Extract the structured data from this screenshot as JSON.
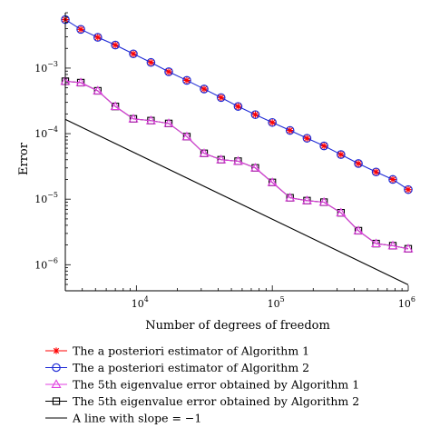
{
  "chart_data": {
    "type": "line",
    "xlabel": "Number of degrees of freedom",
    "ylabel": "Error",
    "x_scale": "log",
    "y_scale": "log",
    "xlim": [
      3000,
      1000000
    ],
    "ylim": [
      4e-07,
      0.007
    ],
    "x_ticks": [
      {
        "value": 10000,
        "base": "10",
        "exp": "4"
      },
      {
        "value": 100000,
        "base": "10",
        "exp": "5"
      },
      {
        "value": 1000000,
        "base": "10",
        "exp": "6"
      }
    ],
    "y_ticks": [
      {
        "value": 0.001,
        "base": "10",
        "exp": "−3"
      },
      {
        "value": 0.0001,
        "base": "10",
        "exp": "−4"
      },
      {
        "value": 1e-05,
        "base": "10",
        "exp": "−5"
      },
      {
        "value": 1e-06,
        "base": "10",
        "exp": "−6"
      }
    ],
    "grid": false,
    "legend_position": "bottom",
    "series": [
      {
        "name": "The a posteriori estimator of Algorithm 1",
        "color": "#ff0000",
        "marker": "asterisk",
        "x": [
          3000,
          3900,
          5200,
          7000,
          9500,
          12800,
          17300,
          23500,
          31500,
          42000,
          56000,
          75000,
          100000,
          135000,
          180000,
          240000,
          320000,
          430000,
          580000,
          770000,
          1000000
        ],
        "y": [
          0.0055,
          0.0039,
          0.00295,
          0.00225,
          0.00165,
          0.00122,
          0.00088,
          0.00065,
          0.00048,
          0.000355,
          0.00026,
          0.000195,
          0.000148,
          0.000112,
          8.5e-05,
          6.5e-05,
          4.8e-05,
          3.5e-05,
          2.6e-05,
          2e-05,
          1.4e-05
        ]
      },
      {
        "name": "The a posteriori estimator of Algorithm 2",
        "color": "#1f2bd6",
        "marker": "circle",
        "x": [
          3000,
          3900,
          5200,
          7000,
          9500,
          12800,
          17300,
          23500,
          31500,
          42000,
          56000,
          75000,
          100000,
          135000,
          180000,
          240000,
          320000,
          430000,
          580000,
          770000,
          1000000
        ],
        "y": [
          0.0055,
          0.0039,
          0.00295,
          0.00225,
          0.00165,
          0.00122,
          0.00088,
          0.00065,
          0.00048,
          0.000355,
          0.00026,
          0.000195,
          0.000148,
          0.000112,
          8.5e-05,
          6.5e-05,
          4.8e-05,
          3.5e-05,
          2.6e-05,
          2e-05,
          1.4e-05
        ]
      },
      {
        "name": "The 5th eigenvalue error obtained by Algorithm 1",
        "color": "#e040e0",
        "marker": "triangle",
        "x": [
          3000,
          3900,
          5200,
          7000,
          9500,
          12800,
          17300,
          23500,
          31500,
          42000,
          56000,
          75000,
          100000,
          135000,
          180000,
          240000,
          320000,
          430000,
          580000,
          770000,
          1000000
        ],
        "y": [
          0.00063,
          0.0006,
          0.00045,
          0.00026,
          0.000168,
          0.000158,
          0.000143,
          9e-05,
          5e-05,
          4e-05,
          3.8e-05,
          3e-05,
          1.8e-05,
          1.05e-05,
          9.5e-06,
          9e-06,
          6.2e-06,
          3.3e-06,
          2.1e-06,
          1.95e-06,
          1.75e-06
        ]
      },
      {
        "name": "The 5th eigenvalue error obtained by Algorithm 2",
        "color": "#000000",
        "marker": "square",
        "x": [
          3000,
          3900,
          5200,
          7000,
          9500,
          12800,
          17300,
          23500,
          31500,
          42000,
          56000,
          75000,
          100000,
          135000,
          180000,
          240000,
          320000,
          430000,
          580000,
          770000,
          1000000
        ],
        "y": [
          0.00063,
          0.0006,
          0.00045,
          0.00026,
          0.000168,
          0.000158,
          0.000143,
          9e-05,
          5e-05,
          4e-05,
          3.8e-05,
          3e-05,
          1.8e-05,
          1.05e-05,
          9.5e-06,
          9e-06,
          6.2e-06,
          3.3e-06,
          2.1e-06,
          1.95e-06,
          1.75e-06
        ]
      },
      {
        "name": "A line with slope = −1",
        "color": "#000000",
        "marker": "none",
        "x": [
          3000,
          1000000
        ],
        "y": [
          0.000165,
          4.95e-07
        ]
      }
    ]
  }
}
